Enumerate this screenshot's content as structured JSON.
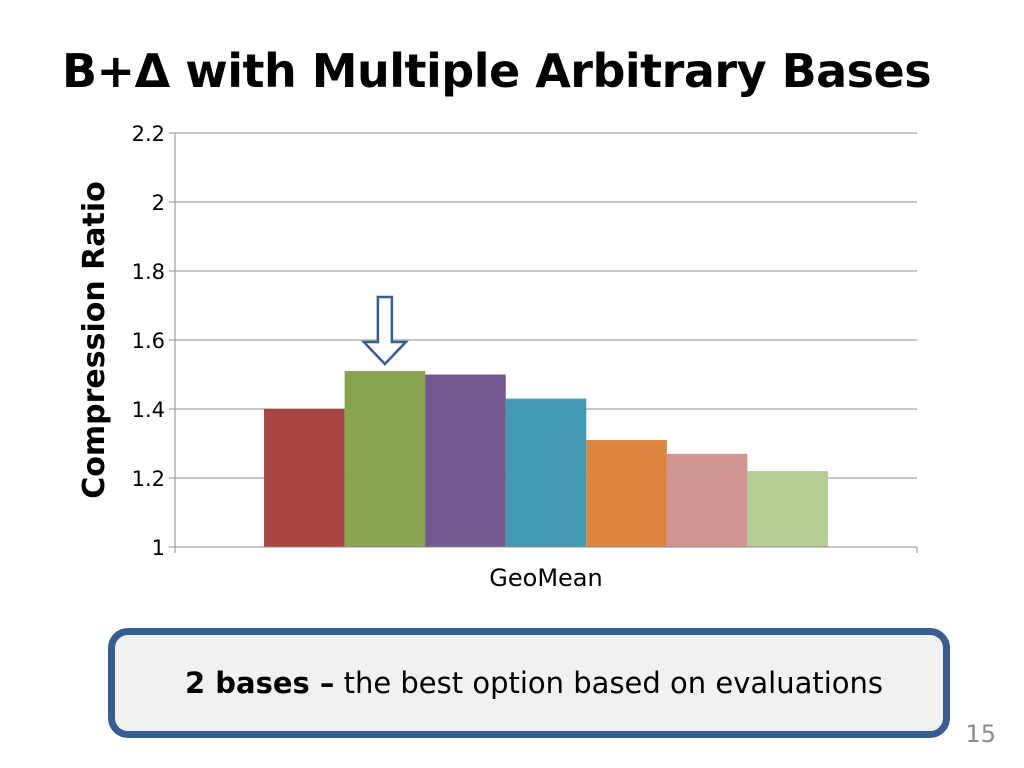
{
  "slide": {
    "title": "B+Δ with Multiple Arbitrary Bases",
    "page_number": "15"
  },
  "callout": {
    "check_glyph": "",
    "bold_text": "2 bases –",
    "text": " the best option based on evaluations"
  },
  "chart_data": {
    "type": "bar",
    "title": "",
    "xlabel": "",
    "ylabel": "Compression Ratio",
    "categories": [
      "GeoMean"
    ],
    "series": [
      {
        "values": [
          1.4
        ],
        "color": "#a84644"
      },
      {
        "values": [
          1.51
        ],
        "color": "#88a44f"
      },
      {
        "values": [
          1.5
        ],
        "color": "#71598e"
      },
      {
        "values": [
          1.43
        ],
        "color": "#4299b0"
      },
      {
        "values": [
          1.31
        ],
        "color": "#db8540"
      },
      {
        "values": [
          1.27
        ],
        "color": "#d19593"
      },
      {
        "values": [
          1.22
        ],
        "color": "#b7cc95"
      }
    ],
    "ylim": [
      1,
      2.2
    ],
    "yticks": [
      "1",
      "1.2",
      "1.4",
      "1.6",
      "1.8",
      "2",
      "2.2"
    ],
    "grid": true,
    "legend": "none",
    "annotations": [
      {
        "type": "down-arrow",
        "points_to_series_index": 1
      }
    ]
  }
}
